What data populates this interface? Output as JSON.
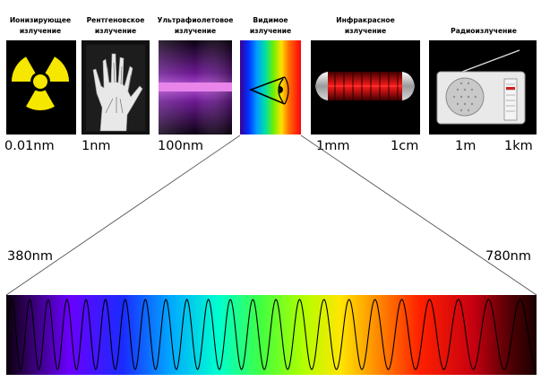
{
  "panels": [
    {
      "line1": "Ионизирующее",
      "line2": "излучение",
      "icon": "radiation-icon"
    },
    {
      "line1": "Рентгеновское",
      "line2": "излучение",
      "icon": "xray-hand-icon"
    },
    {
      "line1": "Ультрафиолетовое",
      "line2": "излучение",
      "icon": "ultraviolet-lamp-icon"
    },
    {
      "line1": "Видимое",
      "line2": "излучение",
      "icon": "eye-icon"
    },
    {
      "line1": "Инфракрасное",
      "line2": "излучение",
      "icon": "infrared-heater-icon"
    },
    {
      "line1": "Радиоизлучение",
      "line2": "",
      "icon": "radio-icon"
    }
  ],
  "scale_labels": [
    "0.01nm",
    "1nm",
    "100nm",
    "1mm",
    "1cm",
    "1m",
    "1km"
  ],
  "visible_range": {
    "start": "380nm",
    "end": "780nm"
  },
  "colors": {
    "radiation_yellow": "#f5e700",
    "uv_purple": "#a13cc0",
    "uv_band": "#e884ea",
    "ir_red": "#c00000"
  }
}
